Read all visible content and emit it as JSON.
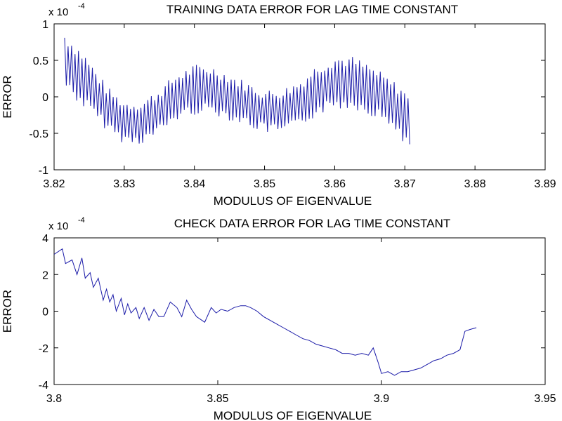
{
  "chart_data": [
    {
      "type": "line",
      "title": "TRAINING DATA ERROR FOR LAG TIME CONSTANT",
      "xlabel": "MODULUS OF EIGENVALUE",
      "ylabel": "ERROR",
      "y_multiplier_base": "x 10",
      "y_multiplier_exp": "-4",
      "xlim": [
        3.82,
        3.89
      ],
      "ylim": [
        -1,
        1
      ],
      "xticks": [
        3.82,
        3.83,
        3.84,
        3.85,
        3.86,
        3.87,
        3.88,
        3.89
      ],
      "xtick_labels": [
        "3.82",
        "3.83",
        "3.84",
        "3.85",
        "3.86",
        "3.87",
        "3.88",
        "3.89"
      ],
      "yticks": [
        1,
        0.5,
        0,
        -0.5,
        -1
      ],
      "ytick_labels": [
        "1",
        "0.5",
        "0",
        "-0.5",
        "-1"
      ],
      "grid": false,
      "line_color": "#1a1aa8",
      "x_start": 3.8215,
      "x_end": 3.8707,
      "envelope": [
        [
          3.8215,
          0.5
        ],
        [
          3.8245,
          0.2
        ],
        [
          3.8275,
          -0.15
        ],
        [
          3.83,
          -0.35
        ],
        [
          3.8325,
          -0.35
        ],
        [
          3.835,
          -0.2
        ],
        [
          3.8375,
          0.0
        ],
        [
          3.84,
          0.1
        ],
        [
          3.8425,
          0.1
        ],
        [
          3.845,
          0.0
        ],
        [
          3.8475,
          -0.1
        ],
        [
          3.85,
          -0.2
        ],
        [
          3.8525,
          -0.2
        ],
        [
          3.855,
          -0.1
        ],
        [
          3.8575,
          0.1
        ],
        [
          3.86,
          0.2
        ],
        [
          3.8625,
          0.2
        ],
        [
          3.865,
          0.1
        ],
        [
          3.8675,
          -0.05
        ],
        [
          3.8695,
          -0.2
        ],
        [
          3.8707,
          -0.4
        ]
      ],
      "amplitude": [
        [
          3.8215,
          0.4
        ],
        [
          3.824,
          0.4
        ],
        [
          3.828,
          0.3
        ],
        [
          3.832,
          0.3
        ],
        [
          3.84,
          0.35
        ],
        [
          3.85,
          0.3
        ],
        [
          3.86,
          0.38
        ],
        [
          3.868,
          0.33
        ],
        [
          3.8707,
          0.4
        ]
      ],
      "samples": 200
    },
    {
      "type": "line",
      "title": "CHECK DATA ERROR FOR LAG TIME CONSTANT",
      "xlabel": "MODULUS OF EIGENVALUE",
      "ylabel": "ERROR",
      "y_multiplier_base": "x 10",
      "y_multiplier_exp": "-4",
      "xlim": [
        3.8,
        3.95
      ],
      "ylim": [
        -4,
        4
      ],
      "xticks": [
        3.8,
        3.85,
        3.9,
        3.95
      ],
      "xtick_labels": [
        "3.8",
        "3.85",
        "3.9",
        "3.95"
      ],
      "yticks": [
        4,
        2,
        0,
        -2,
        -4
      ],
      "ytick_labels": [
        "4",
        "2",
        "0",
        "-2",
        "-4"
      ],
      "grid": false,
      "line_color": "#1a1aa8",
      "x": [
        3.8,
        3.8025,
        3.8035,
        3.8055,
        3.807,
        3.8085,
        3.8095,
        3.811,
        3.812,
        3.8135,
        3.815,
        3.816,
        3.817,
        3.818,
        3.819,
        3.8205,
        3.8215,
        3.8225,
        3.8235,
        3.825,
        3.826,
        3.8275,
        3.829,
        3.8305,
        3.832,
        3.8335,
        3.8355,
        3.8375,
        3.839,
        3.8405,
        3.842,
        3.8435,
        3.846,
        3.848,
        3.8495,
        3.851,
        3.853,
        3.855,
        3.857,
        3.8585,
        3.86,
        3.862,
        3.864,
        3.866,
        3.868,
        3.87,
        3.872,
        3.874,
        3.876,
        3.878,
        3.88,
        3.882,
        3.884,
        3.886,
        3.888,
        3.89,
        3.892,
        3.894,
        3.896,
        3.8975,
        3.899,
        3.9,
        3.902,
        3.904,
        3.906,
        3.908,
        3.91,
        3.912,
        3.914,
        3.916,
        3.918,
        3.92,
        3.922,
        3.924,
        3.9255,
        3.927,
        3.929
      ],
      "y": [
        3.1,
        3.4,
        2.6,
        2.8,
        2.0,
        2.9,
        1.8,
        2.1,
        1.3,
        1.8,
        0.6,
        1.2,
        0.5,
        0.9,
        0.0,
        0.7,
        -0.2,
        0.4,
        -0.1,
        0.2,
        -0.4,
        0.2,
        -0.5,
        0.1,
        -0.3,
        -0.3,
        0.5,
        0.2,
        -0.3,
        0.6,
        0.1,
        -0.3,
        -0.6,
        0.2,
        -0.1,
        0.1,
        0.0,
        0.2,
        0.3,
        0.3,
        0.2,
        0.0,
        -0.3,
        -0.5,
        -0.7,
        -0.9,
        -1.1,
        -1.3,
        -1.5,
        -1.6,
        -1.8,
        -1.9,
        -2.0,
        -2.1,
        -2.3,
        -2.3,
        -2.4,
        -2.3,
        -2.4,
        -2.0,
        -2.8,
        -3.4,
        -3.3,
        -3.5,
        -3.3,
        -3.3,
        -3.2,
        -3.1,
        -2.9,
        -2.7,
        -2.6,
        -2.4,
        -2.3,
        -2.1,
        -1.1,
        -1.0,
        -0.9
      ]
    }
  ]
}
